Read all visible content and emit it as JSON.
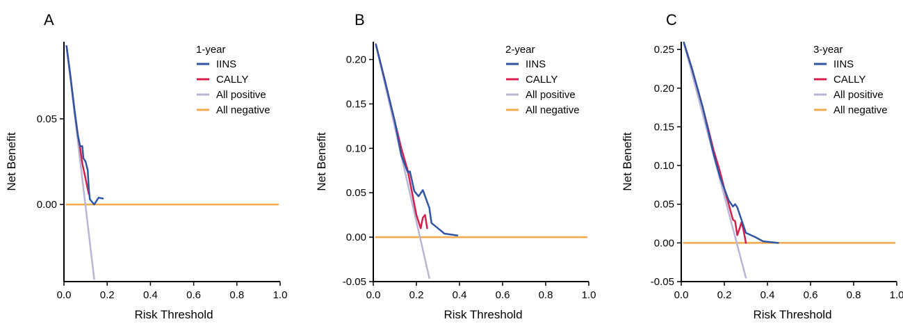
{
  "colors": {
    "IINS": "#2f55a4",
    "CALLY": "#d41f4b",
    "All positive": "#b8b5d6",
    "All negative": "#f5a94c",
    "axis": "#000000"
  },
  "chart_data": [
    {
      "type": "line",
      "panel": "A",
      "xlabel": "Risk Threshold",
      "ylabel": "Net Benefit",
      "xlim": [
        0,
        1.0
      ],
      "ylim": [
        -0.045,
        0.095
      ],
      "xticks": [
        0.0,
        0.2,
        0.4,
        0.6,
        0.8,
        1.0
      ],
      "xtick_labels": [
        "0.0",
        "0.2",
        "0.4",
        "0.6",
        "0.8",
        "1.0"
      ],
      "yticks": [
        0.0,
        0.05
      ],
      "ytick_labels": [
        "0.00",
        "0.05"
      ],
      "grid": false,
      "legend": {
        "title": "1-year",
        "placement": "top-right",
        "entries": [
          "IINS",
          "CALLY",
          "All positive",
          "All negative"
        ]
      },
      "series": [
        {
          "name": "IINS",
          "x": [
            0.012,
            0.03,
            0.05,
            0.065,
            0.075,
            0.085,
            0.09,
            0.1,
            0.11,
            0.115,
            0.12,
            0.14,
            0.16,
            0.18
          ],
          "y": [
            0.0925,
            0.075,
            0.054,
            0.04,
            0.034,
            0.034,
            0.027,
            0.025,
            0.02,
            0.009,
            0.003,
            0.0,
            0.004,
            0.0035
          ]
        },
        {
          "name": "CALLY",
          "x": [
            0.012,
            0.03,
            0.05,
            0.065,
            0.075,
            0.085,
            0.1,
            0.115
          ],
          "y": [
            0.0925,
            0.075,
            0.054,
            0.04,
            0.033,
            0.024,
            0.015,
            0.006
          ]
        },
        {
          "name": "All positive",
          "x": [
            0.012,
            0.14
          ],
          "y": [
            0.0925,
            -0.0435
          ]
        },
        {
          "name": "All negative",
          "x": [
            0.012,
            0.99
          ],
          "y": [
            0.0,
            0.0
          ]
        }
      ]
    },
    {
      "type": "line",
      "panel": "B",
      "xlabel": "Risk Threshold",
      "ylabel": "Net Benefit",
      "xlim": [
        0,
        1.0
      ],
      "ylim": [
        -0.05,
        0.22
      ],
      "xticks": [
        0.0,
        0.2,
        0.4,
        0.6,
        0.8,
        1.0
      ],
      "xtick_labels": [
        "0.0",
        "0.2",
        "0.4",
        "0.6",
        "0.8",
        "1.0"
      ],
      "yticks": [
        -0.05,
        0.0,
        0.05,
        0.1,
        0.15,
        0.2
      ],
      "ytick_labels": [
        "-0.05",
        "0.00",
        "0.05",
        "0.10",
        "0.15",
        "0.20"
      ],
      "grid": false,
      "legend": {
        "title": "2-year",
        "placement": "top-right",
        "entries": [
          "IINS",
          "CALLY",
          "All positive",
          "All negative"
        ]
      },
      "series": [
        {
          "name": "IINS",
          "x": [
            0.012,
            0.05,
            0.1,
            0.13,
            0.16,
            0.17,
            0.19,
            0.21,
            0.23,
            0.26,
            0.27,
            0.3,
            0.33,
            0.39
          ],
          "y": [
            0.217,
            0.18,
            0.13,
            0.092,
            0.073,
            0.074,
            0.052,
            0.046,
            0.053,
            0.033,
            0.016,
            0.01,
            0.004,
            0.002
          ]
        },
        {
          "name": "CALLY",
          "x": [
            0.012,
            0.05,
            0.1,
            0.13,
            0.16,
            0.18,
            0.2,
            0.22,
            0.23,
            0.24,
            0.25
          ],
          "y": [
            0.217,
            0.18,
            0.13,
            0.1,
            0.075,
            0.05,
            0.025,
            0.01,
            0.022,
            0.025,
            0.01
          ]
        },
        {
          "name": "All positive",
          "x": [
            0.012,
            0.26
          ],
          "y": [
            0.217,
            -0.046
          ]
        },
        {
          "name": "All negative",
          "x": [
            0.012,
            0.99
          ],
          "y": [
            0.0,
            0.0
          ]
        }
      ]
    },
    {
      "type": "line",
      "panel": "C",
      "xlabel": "Risk Threshold",
      "ylabel": "Net Benefit",
      "xlim": [
        0,
        1.0
      ],
      "ylim": [
        -0.05,
        0.26
      ],
      "xticks": [
        0.0,
        0.2,
        0.4,
        0.6,
        0.8,
        1.0
      ],
      "xtick_labels": [
        "0.0",
        "0.2",
        "0.4",
        "0.6",
        "0.8",
        "1.0"
      ],
      "yticks": [
        -0.05,
        0.0,
        0.05,
        0.1,
        0.15,
        0.2,
        0.25
      ],
      "ytick_labels": [
        "-0.05",
        "0.00",
        "0.05",
        "0.10",
        "0.15",
        "0.20",
        "0.25"
      ],
      "grid": false,
      "legend": {
        "title": "3-year",
        "placement": "top-right",
        "entries": [
          "IINS",
          "CALLY",
          "All positive",
          "All negative"
        ]
      },
      "series": [
        {
          "name": "IINS",
          "x": [
            0.012,
            0.05,
            0.1,
            0.15,
            0.18,
            0.2,
            0.22,
            0.24,
            0.25,
            0.26,
            0.3,
            0.34,
            0.38,
            0.45
          ],
          "y": [
            0.259,
            0.225,
            0.175,
            0.115,
            0.085,
            0.07,
            0.055,
            0.047,
            0.05,
            0.046,
            0.013,
            0.008,
            0.002,
            0.0
          ]
        },
        {
          "name": "CALLY",
          "x": [
            0.012,
            0.05,
            0.1,
            0.15,
            0.18,
            0.2,
            0.22,
            0.24,
            0.25,
            0.26,
            0.27,
            0.28,
            0.29,
            0.3
          ],
          "y": [
            0.259,
            0.225,
            0.175,
            0.12,
            0.092,
            0.07,
            0.05,
            0.03,
            0.028,
            0.01,
            0.018,
            0.027,
            0.015,
            0.0
          ]
        },
        {
          "name": "All positive",
          "x": [
            0.012,
            0.3
          ],
          "y": [
            0.259,
            -0.045
          ]
        },
        {
          "name": "All negative",
          "x": [
            0.012,
            0.99
          ],
          "y": [
            0.0,
            0.0
          ]
        }
      ]
    }
  ]
}
